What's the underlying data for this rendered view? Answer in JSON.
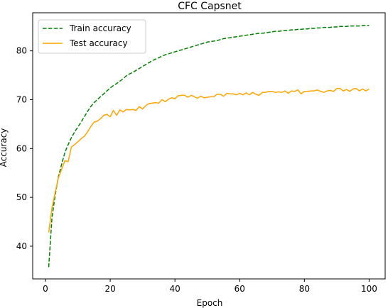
{
  "chart_data": {
    "type": "line",
    "title": "CFC Capsnet",
    "xlabel": "Epoch",
    "ylabel": "Accuracy",
    "xlim": [
      -3.95,
      104.95
    ],
    "ylim": [
      33.3,
      87.8
    ],
    "xticks": [
      0,
      20,
      40,
      60,
      80,
      100
    ],
    "yticks": [
      40,
      50,
      60,
      70,
      80
    ],
    "grid": false,
    "legend_position": "top-left",
    "series": [
      {
        "name": "Train accuracy",
        "color": "#008000",
        "style": "dashed",
        "x": [
          1,
          2,
          3,
          4,
          5,
          6,
          7,
          8,
          9,
          10,
          11,
          12,
          13,
          14,
          15,
          16,
          17,
          18,
          19,
          20,
          21,
          22,
          23,
          24,
          25,
          26,
          27,
          28,
          29,
          30,
          31,
          32,
          33,
          34,
          35,
          36,
          37,
          38,
          39,
          40,
          41,
          42,
          43,
          44,
          45,
          46,
          47,
          48,
          49,
          50,
          51,
          52,
          53,
          54,
          55,
          56,
          57,
          58,
          59,
          60,
          61,
          62,
          63,
          64,
          65,
          66,
          67,
          68,
          69,
          70,
          71,
          72,
          73,
          74,
          75,
          76,
          77,
          78,
          79,
          80,
          81,
          82,
          83,
          84,
          85,
          86,
          87,
          88,
          89,
          90,
          91,
          92,
          93,
          94,
          95,
          96,
          97,
          98,
          99,
          100
        ],
        "values": [
          35.7,
          45.8,
          50.5,
          54.2,
          56.8,
          59.2,
          60.8,
          62.2,
          63.4,
          64.4,
          65.4,
          66.5,
          67.6,
          68.6,
          69.4,
          70.0,
          70.6,
          71.2,
          71.8,
          72.4,
          72.9,
          73.3,
          73.8,
          74.3,
          74.9,
          75.3,
          75.6,
          76.0,
          76.4,
          76.8,
          77.2,
          77.6,
          78.0,
          78.3,
          78.6,
          78.9,
          79.2,
          79.4,
          79.6,
          79.8,
          80.0,
          80.2,
          80.4,
          80.6,
          80.8,
          81.0,
          81.2,
          81.4,
          81.6,
          81.8,
          81.9,
          82.0,
          82.1,
          82.3,
          82.5,
          82.6,
          82.7,
          82.8,
          82.9,
          83.0,
          83.1,
          83.2,
          83.3,
          83.4,
          83.5,
          83.6,
          83.6,
          83.7,
          83.8,
          83.9,
          84.0,
          84.0,
          84.1,
          84.2,
          84.2,
          84.3,
          84.3,
          84.4,
          84.4,
          84.5,
          84.5,
          84.6,
          84.6,
          84.7,
          84.7,
          84.8,
          84.8,
          84.8,
          84.9,
          84.9,
          85.0,
          85.0,
          85.0,
          85.1,
          85.1,
          85.1,
          85.1,
          85.2,
          85.2,
          85.2
        ]
      },
      {
        "name": "Test accuracy",
        "color": "#ffa500",
        "style": "solid",
        "x": [
          1,
          2,
          3,
          4,
          5,
          6,
          7,
          8,
          9,
          10,
          11,
          12,
          13,
          14,
          15,
          16,
          17,
          18,
          19,
          20,
          21,
          22,
          23,
          24,
          25,
          26,
          27,
          28,
          29,
          30,
          31,
          32,
          33,
          34,
          35,
          36,
          37,
          38,
          39,
          40,
          41,
          42,
          43,
          44,
          45,
          46,
          47,
          48,
          49,
          50,
          51,
          52,
          53,
          54,
          55,
          56,
          57,
          58,
          59,
          60,
          61,
          62,
          63,
          64,
          65,
          66,
          67,
          68,
          69,
          70,
          71,
          72,
          73,
          74,
          75,
          76,
          77,
          78,
          79,
          80,
          81,
          82,
          83,
          84,
          85,
          86,
          87,
          88,
          89,
          90,
          91,
          92,
          93,
          94,
          95,
          96,
          97,
          98,
          99,
          100
        ],
        "values": [
          42.8,
          47.8,
          51.0,
          54.0,
          55.8,
          57.5,
          57.3,
          60.3,
          60.8,
          61.4,
          62.0,
          62.5,
          63.4,
          64.5,
          65.4,
          65.6,
          66.1,
          66.8,
          67.0,
          66.5,
          67.8,
          66.8,
          67.9,
          67.5,
          68.0,
          67.9,
          68.0,
          67.8,
          68.6,
          68.1,
          68.8,
          69.2,
          69.3,
          69.4,
          69.3,
          70.0,
          69.6,
          70.1,
          70.4,
          70.2,
          70.8,
          70.9,
          70.9,
          70.5,
          70.9,
          70.6,
          70.3,
          70.7,
          70.4,
          70.5,
          70.6,
          70.6,
          71.1,
          71.1,
          70.7,
          71.3,
          71.2,
          71.2,
          71.0,
          71.3,
          71.0,
          71.4,
          71.0,
          71.5,
          71.1,
          70.9,
          71.5,
          71.5,
          71.7,
          71.7,
          71.5,
          71.6,
          71.5,
          71.8,
          71.3,
          71.8,
          71.7,
          72.0,
          71.2,
          71.7,
          71.7,
          71.8,
          71.8,
          72.0,
          71.7,
          71.5,
          71.8,
          71.9,
          71.7,
          72.3,
          72.3,
          71.8,
          72.1,
          71.7,
          72.2,
          72.3,
          71.8,
          72.2,
          71.8,
          72.2
        ]
      }
    ]
  }
}
